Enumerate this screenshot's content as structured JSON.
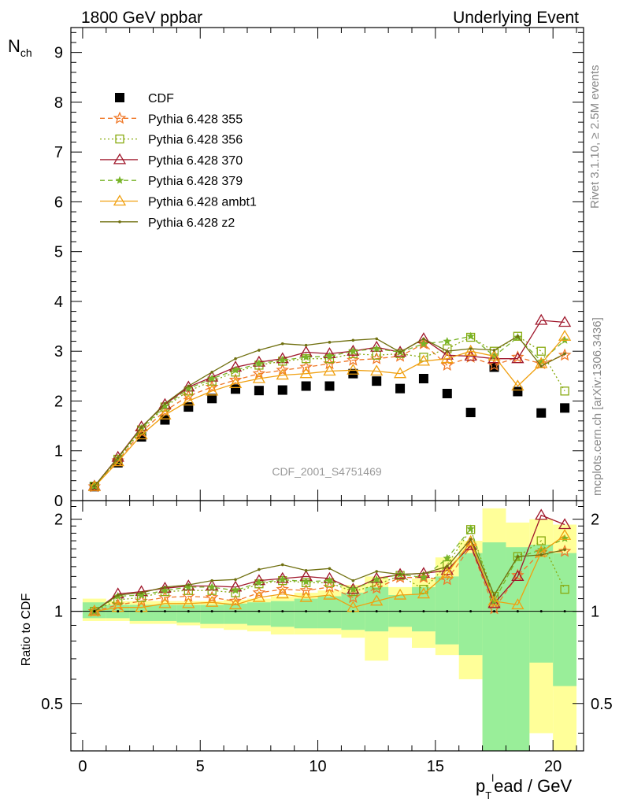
{
  "header": {
    "left": "1800 GeV ppbar",
    "right": "Underlying Event"
  },
  "side_labels": {
    "rivet": "Rivet 3.1.10, ≥ 2.5M events",
    "mcplots": "mcplots.cern.ch [arXiv:1306.3436]"
  },
  "watermark": "CDF_2001_S4751469",
  "chart_data": [
    {
      "type": "scatter",
      "panel": "main",
      "ylabel_main": "N",
      "ylabel_sub": "ch",
      "xlabel_main": "p",
      "xlabel_sub": "T",
      "xlabel_sup": "l",
      "xlabel_rest": "ead / GeV",
      "xlim": [
        -0.5,
        21.3
      ],
      "ylim": [
        0,
        9.5
      ],
      "x_ticks": [
        0,
        5,
        10,
        15,
        20
      ],
      "y_ticks": [
        0,
        1,
        2,
        3,
        4,
        5,
        6,
        7,
        8,
        9
      ],
      "x": [
        0.5,
        1.5,
        2.5,
        3.5,
        4.5,
        5.5,
        6.5,
        7.5,
        8.5,
        9.5,
        10.5,
        11.5,
        12.5,
        13.5,
        14.5,
        15.5,
        16.5,
        17.5,
        18.5,
        19.5,
        20.5
      ],
      "series": [
        {
          "name": "CDF",
          "color": "#000000",
          "marker": "filled-square",
          "dash": "none",
          "values": [
            0.28,
            0.76,
            1.28,
            1.62,
            1.88,
            2.05,
            2.24,
            2.21,
            2.22,
            2.3,
            2.3,
            2.55,
            2.4,
            2.25,
            2.45,
            2.15,
            1.77,
            2.68,
            2.19,
            1.76,
            1.86
          ]
        },
        {
          "name": "Pythia 6.428 355",
          "color": "#f07828",
          "marker": "star",
          "dash": "6,4",
          "values": [
            0.28,
            0.8,
            1.38,
            1.8,
            2.1,
            2.28,
            2.42,
            2.55,
            2.62,
            2.68,
            2.75,
            2.82,
            2.85,
            2.9,
            3.15,
            2.72,
            2.88,
            2.72,
            2.88,
            2.75,
            2.92
          ]
        },
        {
          "name": "Pythia 6.428 356",
          "color": "#88aa10",
          "marker": "open-square",
          "dash": "2,3",
          "values": [
            0.29,
            0.83,
            1.42,
            1.88,
            2.2,
            2.4,
            2.58,
            2.72,
            2.8,
            2.85,
            2.85,
            2.95,
            2.92,
            2.95,
            2.88,
            3.05,
            3.28,
            3.0,
            3.3,
            3.0,
            2.2
          ]
        },
        {
          "name": "Pythia 6.428 370",
          "color": "#a0182c",
          "marker": "open-triangle",
          "dash": "none",
          "values": [
            0.29,
            0.87,
            1.48,
            1.93,
            2.28,
            2.48,
            2.68,
            2.78,
            2.85,
            2.98,
            2.95,
            3.0,
            3.08,
            2.98,
            3.25,
            2.92,
            2.9,
            2.85,
            2.85,
            3.62,
            3.58
          ]
        },
        {
          "name": "Pythia 6.428 379",
          "color": "#78b428",
          "marker": "small-star",
          "dash": "6,4",
          "values": [
            0.29,
            0.85,
            1.45,
            1.9,
            2.25,
            2.45,
            2.62,
            2.75,
            2.82,
            2.88,
            2.9,
            3.0,
            3.05,
            2.98,
            3.15,
            3.2,
            3.3,
            2.9,
            3.28,
            2.8,
            3.22
          ]
        },
        {
          "name": "Pythia 6.428 ambt1",
          "color": "#f0a010",
          "marker": "open-triangle",
          "dash": "none",
          "values": [
            0.28,
            0.78,
            1.32,
            1.72,
            2.0,
            2.2,
            2.35,
            2.45,
            2.52,
            2.55,
            2.6,
            2.62,
            2.6,
            2.55,
            2.8,
            2.85,
            3.0,
            2.9,
            2.3,
            2.75,
            3.3
          ]
        },
        {
          "name": "Pythia 6.428 z2",
          "color": "#707010",
          "marker": "dot",
          "dash": "none",
          "values": [
            0.29,
            0.86,
            1.47,
            1.95,
            2.3,
            2.58,
            2.85,
            3.02,
            3.15,
            3.12,
            3.18,
            3.22,
            3.25,
            2.98,
            3.25,
            3.0,
            3.05,
            3.02,
            3.3,
            2.7,
            2.95
          ]
        }
      ]
    },
    {
      "type": "line",
      "panel": "ratio",
      "ylabel": "Ratio to CDF",
      "ylim": [
        0.35,
        2.3
      ],
      "y_ticks": [
        0.5,
        1,
        2
      ],
      "x": [
        0.5,
        1.5,
        2.5,
        3.5,
        4.5,
        5.5,
        6.5,
        7.5,
        8.5,
        9.5,
        10.5,
        11.5,
        12.5,
        13.5,
        14.5,
        15.5,
        16.5,
        17.5,
        18.5,
        19.5,
        20.5
      ],
      "band_green": [
        [
          0.95,
          1.07
        ],
        [
          0.95,
          1.05
        ],
        [
          0.93,
          1.05
        ],
        [
          0.93,
          1.05
        ],
        [
          0.92,
          1.05
        ],
        [
          0.91,
          1.05
        ],
        [
          0.91,
          1.06
        ],
        [
          0.9,
          1.07
        ],
        [
          0.89,
          1.08
        ],
        [
          0.88,
          1.1
        ],
        [
          0.88,
          1.12
        ],
        [
          0.87,
          1.15
        ],
        [
          0.86,
          1.2
        ],
        [
          0.89,
          1.13
        ],
        [
          0.86,
          1.2
        ],
        [
          0.78,
          1.3
        ],
        [
          0.72,
          1.55
        ],
        [
          0.3,
          1.68
        ],
        [
          0.3,
          1.62
        ],
        [
          0.68,
          1.65
        ],
        [
          0.57,
          1.55
        ]
      ],
      "band_yellow": [
        [
          0.93,
          1.1
        ],
        [
          0.93,
          1.08
        ],
        [
          0.91,
          1.08
        ],
        [
          0.91,
          1.08
        ],
        [
          0.9,
          1.08
        ],
        [
          0.88,
          1.08
        ],
        [
          0.87,
          1.09
        ],
        [
          0.86,
          1.1
        ],
        [
          0.84,
          1.12
        ],
        [
          0.84,
          1.15
        ],
        [
          0.84,
          1.17
        ],
        [
          0.82,
          1.22
        ],
        [
          0.69,
          1.3
        ],
        [
          0.82,
          1.2
        ],
        [
          0.76,
          1.28
        ],
        [
          0.72,
          1.5
        ],
        [
          0.6,
          1.7
        ],
        [
          0.3,
          2.17
        ],
        [
          0.3,
          1.95
        ],
        [
          0.4,
          2.0
        ],
        [
          0.35,
          1.92
        ]
      ],
      "series": [
        {
          "name": "Pythia 6.428 355",
          "values": [
            1.0,
            1.05,
            1.08,
            1.11,
            1.12,
            1.11,
            1.08,
            1.15,
            1.18,
            1.17,
            1.2,
            1.11,
            1.19,
            1.29,
            1.29,
            1.27,
            1.63,
            1.02,
            1.31,
            1.56,
            1.57
          ]
        },
        {
          "name": "Pythia 6.428 356",
          "values": [
            1.0,
            1.09,
            1.11,
            1.16,
            1.17,
            1.17,
            1.15,
            1.23,
            1.26,
            1.24,
            1.24,
            1.16,
            1.22,
            1.31,
            1.18,
            1.42,
            1.85,
            1.12,
            1.51,
            1.7,
            1.18
          ]
        },
        {
          "name": "Pythia 6.428 370",
          "values": [
            1.0,
            1.14,
            1.16,
            1.19,
            1.21,
            1.21,
            1.2,
            1.26,
            1.28,
            1.3,
            1.28,
            1.18,
            1.28,
            1.32,
            1.33,
            1.36,
            1.64,
            1.06,
            1.3,
            2.06,
            1.92
          ]
        },
        {
          "name": "Pythia 6.428 379",
          "values": [
            1.0,
            1.12,
            1.13,
            1.17,
            1.2,
            1.2,
            1.17,
            1.24,
            1.27,
            1.25,
            1.26,
            1.18,
            1.27,
            1.32,
            1.29,
            1.49,
            1.86,
            1.08,
            1.5,
            1.59,
            1.73
          ]
        },
        {
          "name": "Pythia 6.428 ambt1",
          "values": [
            1.0,
            1.03,
            1.03,
            1.06,
            1.06,
            1.07,
            1.05,
            1.11,
            1.14,
            1.11,
            1.13,
            1.03,
            1.08,
            1.13,
            1.14,
            1.33,
            1.69,
            1.08,
            1.05,
            1.56,
            1.77
          ]
        },
        {
          "name": "Pythia 6.428 z2",
          "values": [
            1.0,
            1.13,
            1.15,
            1.2,
            1.22,
            1.26,
            1.27,
            1.37,
            1.42,
            1.36,
            1.38,
            1.26,
            1.35,
            1.32,
            1.33,
            1.4,
            1.72,
            1.13,
            1.51,
            1.53,
            1.59
          ]
        }
      ]
    }
  ]
}
